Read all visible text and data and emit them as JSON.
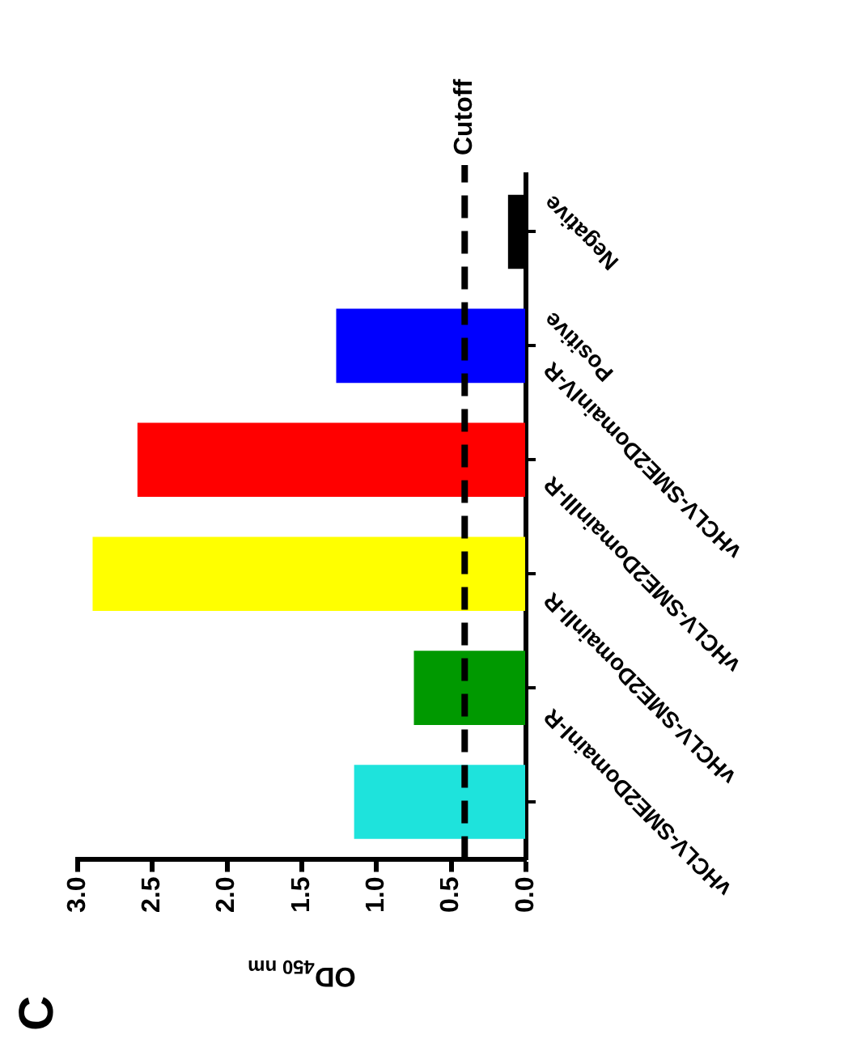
{
  "chart_data": {
    "type": "bar",
    "orientation": "horizontal",
    "xlabel": "OD$_{450 nm}$",
    "categories": [
      "Negative",
      "Positive",
      "vHCLV-SME2DomainIV-R",
      "vHCLV-SME2DomainIII-R",
      "vHCLV-SME2DomainII-R",
      "vHCLV-SME2DomainI-R"
    ],
    "values": [
      0.12,
      1.27,
      2.6,
      2.9,
      0.75,
      1.15
    ],
    "colors": [
      "#000000",
      "#0000ff",
      "#ff0000",
      "#ffff00",
      "#009900",
      "#1ee3dc"
    ],
    "xlim": [
      3,
      0
    ],
    "xticks": [
      {
        "value": 3,
        "label": "3.0"
      },
      {
        "value": 2.5,
        "label": "2.5"
      },
      {
        "value": 2,
        "label": "2.0"
      },
      {
        "value": 1.5,
        "label": "1.5"
      },
      {
        "value": 1,
        "label": "1.0"
      },
      {
        "value": 0.5,
        "label": "0.5"
      },
      {
        "value": 0,
        "label": "0.0"
      }
    ],
    "ref_lines": [
      {
        "axis": "x",
        "value": 0.41,
        "label": "Cutoff",
        "color": "#000000",
        "line_style": "dashed"
      }
    ],
    "annotations": [
      "C"
    ],
    "grid": false,
    "legend": false
  }
}
